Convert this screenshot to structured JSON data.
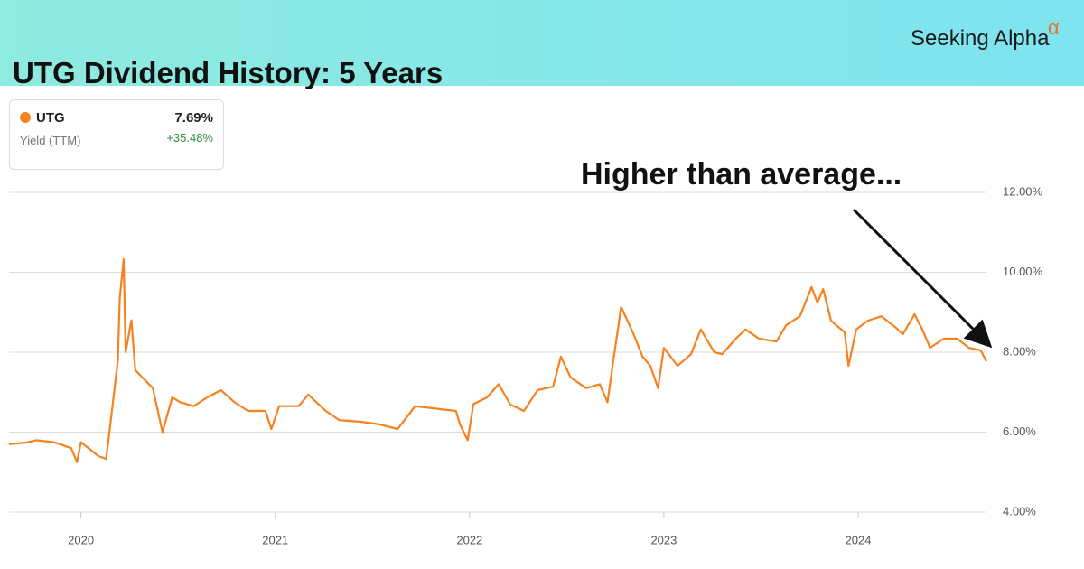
{
  "chart_data": {
    "type": "line",
    "title": "UTG Dividend History: 5 Years",
    "brand": "Seeking Alpha",
    "brand_symbol": "α",
    "annotation": "Higher than average...",
    "summary": {
      "latest_label": "7.69%",
      "metric": "Yield (TTM)",
      "change_label": "+35.48%"
    },
    "x": [
      2019.63,
      2019.72,
      2019.77,
      2019.86,
      2019.95,
      2019.98,
      2020.0,
      2020.09,
      2020.13,
      2020.16,
      2020.19,
      2020.2,
      2020.22,
      2020.23,
      2020.26,
      2020.28,
      2020.33,
      2020.37,
      2020.42,
      2020.47,
      2020.51,
      2020.58,
      2020.65,
      2020.72,
      2020.79,
      2020.86,
      2020.95,
      2020.98,
      2021.02,
      2021.12,
      2021.17,
      2021.26,
      2021.33,
      2021.44,
      2021.53,
      2021.63,
      2021.72,
      2021.81,
      2021.93,
      2021.95,
      2021.99,
      2022.02,
      2022.09,
      2022.15,
      2022.21,
      2022.28,
      2022.35,
      2022.43,
      2022.47,
      2022.52,
      2022.6,
      2022.67,
      2022.71,
      2022.74,
      2022.78,
      2022.84,
      2022.89,
      2022.93,
      2022.97,
      2023.0,
      2023.07,
      2023.14,
      2023.19,
      2023.26,
      2023.3,
      2023.37,
      2023.42,
      2023.49,
      2023.58,
      2023.63,
      2023.7,
      2023.76,
      2023.79,
      2023.82,
      2023.86,
      2023.93,
      2023.95,
      2023.99,
      2024.05,
      2024.12,
      2024.19,
      2024.23,
      2024.29,
      2024.33,
      2024.37,
      2024.44,
      2024.51,
      2024.57,
      2024.63,
      2024.66
    ],
    "series": [
      {
        "name": "UTG",
        "color": "#f5821f",
        "values": [
          5.7,
          5.74,
          5.8,
          5.75,
          5.6,
          5.25,
          5.75,
          5.4,
          5.33,
          6.55,
          7.8,
          9.35,
          10.33,
          8.0,
          8.8,
          7.55,
          7.3,
          7.1,
          6.0,
          6.87,
          6.75,
          6.65,
          6.87,
          7.05,
          6.75,
          6.53,
          6.53,
          6.08,
          6.65,
          6.65,
          6.94,
          6.53,
          6.3,
          6.26,
          6.2,
          6.08,
          6.65,
          6.6,
          6.53,
          6.2,
          5.8,
          6.7,
          6.87,
          7.2,
          6.69,
          6.53,
          7.05,
          7.14,
          7.89,
          7.37,
          7.1,
          7.2,
          6.75,
          7.8,
          9.13,
          8.5,
          7.89,
          7.66,
          7.1,
          8.11,
          7.66,
          7.95,
          8.57,
          8.0,
          7.95,
          8.34,
          8.57,
          8.34,
          8.27,
          8.68,
          8.9,
          9.63,
          9.24,
          9.58,
          8.79,
          8.5,
          7.66,
          8.57,
          8.79,
          8.9,
          8.63,
          8.45,
          8.95,
          8.57,
          8.11,
          8.34,
          8.34,
          8.11,
          8.05,
          7.77
        ]
      }
    ],
    "xlim": [
      2019.63,
      2024.66
    ],
    "xticks": [
      2020,
      2021,
      2022,
      2023,
      2024
    ],
    "ylim": [
      4,
      12
    ],
    "yticks": [
      {
        "value": 4,
        "label": "4.00%"
      },
      {
        "value": 6,
        "label": "6.00%"
      },
      {
        "value": 8,
        "label": "8.00%"
      },
      {
        "value": 10,
        "label": "10.00%"
      },
      {
        "value": 12,
        "label": "12.00%"
      }
    ],
    "grid": true
  }
}
